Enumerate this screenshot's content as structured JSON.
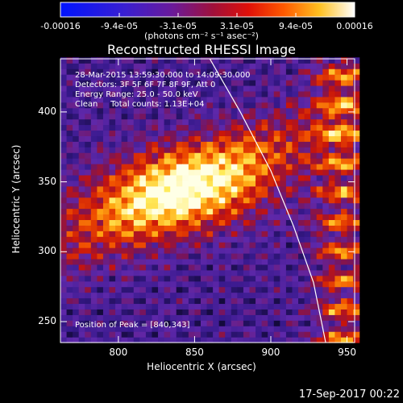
{
  "chart_data": {
    "type": "heatmap",
    "title": "Reconstructed RHESSI Image",
    "xlabel": "Heliocentric X (arcsec)",
    "ylabel": "Heliocentric Y (arcsec)",
    "xlim": [
      762,
      955
    ],
    "ylim": [
      235,
      438
    ],
    "x_ticks": [
      800,
      850,
      900,
      950
    ],
    "y_ticks": [
      250,
      300,
      350,
      400
    ],
    "colorbar": {
      "label": "(photons cm⁻² s⁻¹ asec⁻²)",
      "ticks": [
        "-0.00016",
        "-9.4e-05",
        "-3.1e-05",
        "3.1e-05",
        "9.4e-05",
        "0.00016"
      ],
      "range": [
        -0.00016,
        0.00016
      ]
    },
    "annotations": [
      "28-Mar-2015 13:59:30.000 to 14:09:30.000",
      "Detectors: 3F 5F 6F 7F 8F 9F, Att 0",
      "Energy Range: 25.0 - 50.0 keV",
      "Clean     Total counts: 1.13E+04"
    ],
    "peak_label": "Position of Peak = [840,343]",
    "peak": [
      840,
      343
    ],
    "limb_curve": [
      [
        860,
        438
      ],
      [
        880,
        400
      ],
      [
        900,
        358
      ],
      [
        915,
        318
      ],
      [
        928,
        278
      ],
      [
        936,
        235
      ]
    ],
    "timestamp": "17-Sep-2017 00:22"
  }
}
